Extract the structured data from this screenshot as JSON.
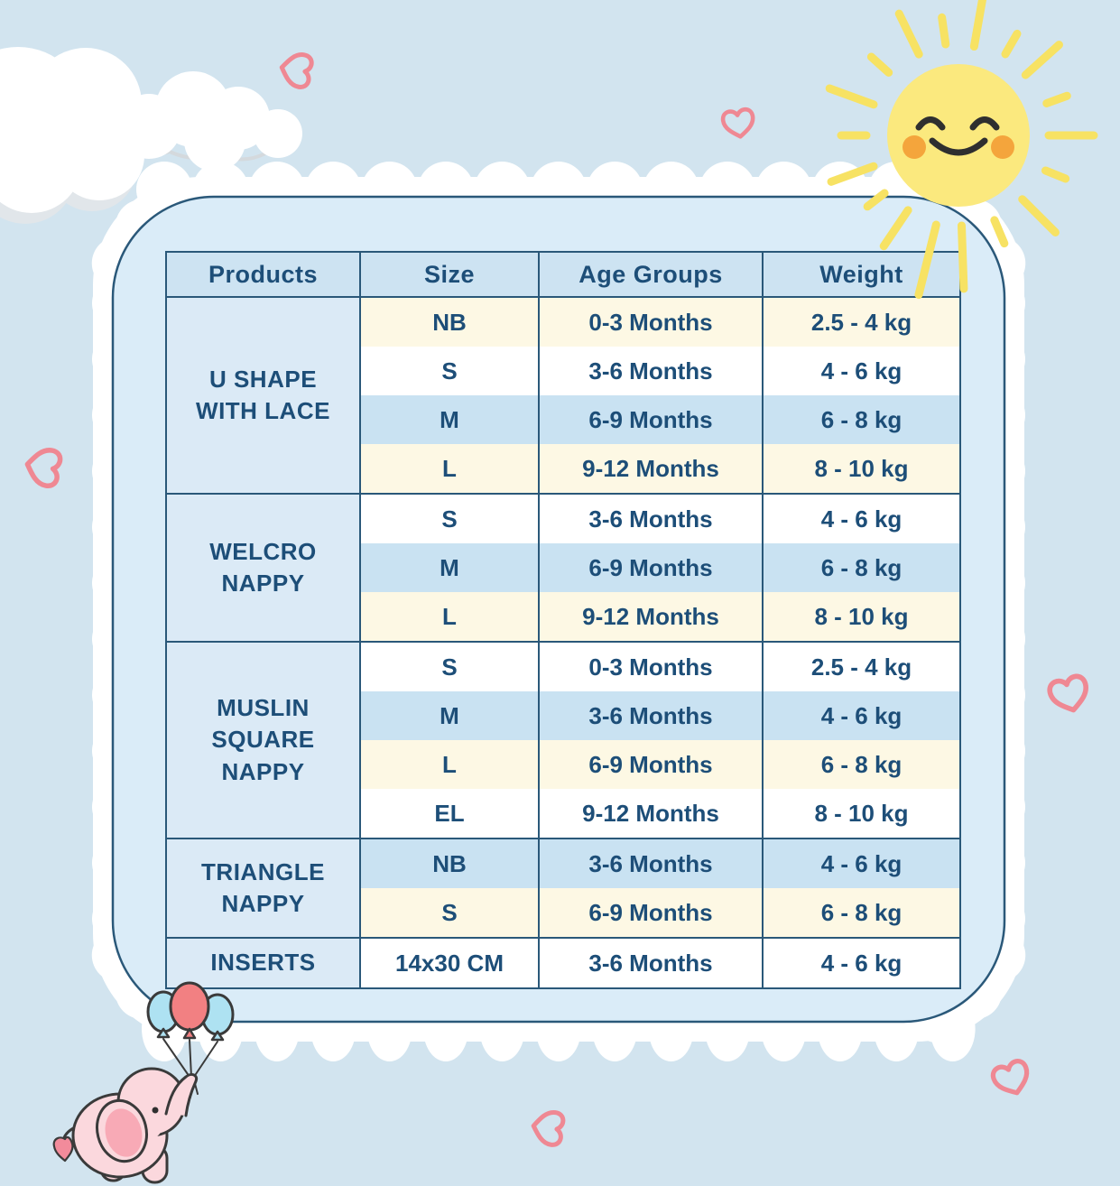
{
  "table": {
    "headers": [
      "Products",
      "Size",
      "Age Groups",
      "Weight"
    ],
    "groups": [
      {
        "product": "U SHAPE\nWITH LACE",
        "rows": [
          {
            "size": "NB",
            "age": "0-3 Months",
            "weight": "2.5 - 4 kg"
          },
          {
            "size": "S",
            "age": "3-6 Months",
            "weight": "4 - 6 kg"
          },
          {
            "size": "M",
            "age": "6-9 Months",
            "weight": "6 - 8 kg"
          },
          {
            "size": "L",
            "age": "9-12 Months",
            "weight": "8 - 10 kg"
          }
        ]
      },
      {
        "product": "WELCRO\nNAPPY",
        "rows": [
          {
            "size": "S",
            "age": "3-6 Months",
            "weight": "4 - 6 kg"
          },
          {
            "size": "M",
            "age": "6-9 Months",
            "weight": "6 - 8 kg"
          },
          {
            "size": "L",
            "age": "9-12 Months",
            "weight": "8 - 10 kg"
          }
        ]
      },
      {
        "product": "MUSLIN\nSQUARE\nNAPPY",
        "rows": [
          {
            "size": "S",
            "age": "0-3 Months",
            "weight": "2.5 - 4 kg"
          },
          {
            "size": "M",
            "age": "3-6 Months",
            "weight": "4 - 6 kg"
          },
          {
            "size": "L",
            "age": "6-9 Months",
            "weight": "6 - 8 kg"
          },
          {
            "size": "EL",
            "age": "9-12 Months",
            "weight": "8 - 10 kg"
          }
        ]
      },
      {
        "product": "TRIANGLE\nNAPPY",
        "rows": [
          {
            "size": "NB",
            "age": "3-6 Months",
            "weight": "4 - 6 kg"
          },
          {
            "size": "S",
            "age": "6-9 Months",
            "weight": "6 - 8 kg"
          }
        ]
      },
      {
        "product": "INSERTS",
        "rows": [
          {
            "size": "14x30 CM",
            "age": "3-6 Months",
            "weight": "4 - 6 kg"
          }
        ]
      }
    ]
  },
  "decorations": {
    "icons": [
      "sun-icon",
      "cloud-icon",
      "heart-icon",
      "elephant-with-balloons-icon",
      "scalloped-frame"
    ]
  },
  "colors": {
    "page_background": "#d2e4ef",
    "card_background": "#daecf8",
    "header_blue": "#cde3f2",
    "product_column_blue": "#dbeaf6",
    "row_blue": "#c9e2f2",
    "row_cream": "#fdf8e4",
    "row_white": "#ffffff",
    "navy_text": "#1d4e78",
    "navy_border": "#2a5879",
    "heart_pink": "#ef8893",
    "sun_yellow": "#fbe97e",
    "sun_ray_yellow": "#f7e263",
    "cheek_orange": "#f4a53c",
    "elephant_pink": "#fbd8dd",
    "ear_pink": "#f8aab6",
    "balloon_red": "#f28082",
    "balloon_blue": "#aee2f2"
  }
}
